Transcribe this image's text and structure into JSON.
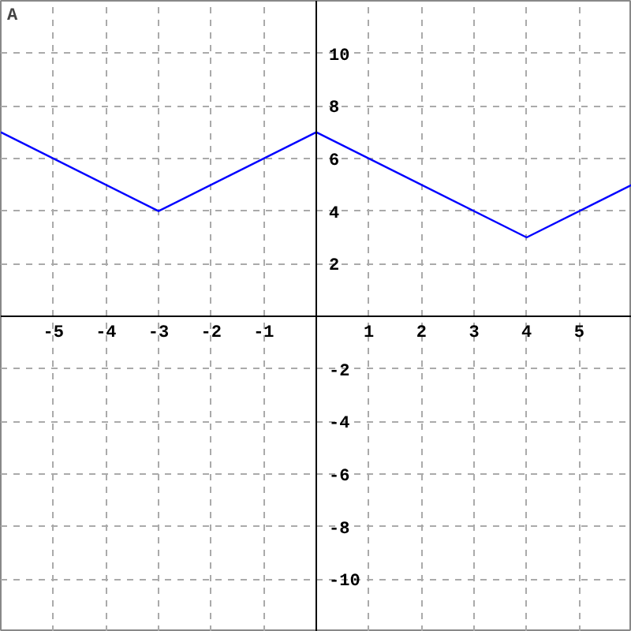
{
  "chart_data": {
    "type": "line",
    "title": "A",
    "x": [
      -6,
      -3,
      0,
      4,
      6
    ],
    "series": [
      {
        "color": "#0000ff",
        "values": [
          7,
          4,
          7,
          3,
          5
        ]
      }
    ],
    "xlim": [
      -6,
      6
    ],
    "ylim": [
      -12,
      12
    ],
    "xticks": [
      -5,
      -4,
      -3,
      -2,
      -1,
      1,
      2,
      3,
      4,
      5
    ],
    "yticks": [
      -10,
      -8,
      -6,
      -4,
      -2,
      2,
      4,
      6,
      8,
      10
    ],
    "grid": true,
    "marker": "none",
    "line_style": "solid"
  }
}
